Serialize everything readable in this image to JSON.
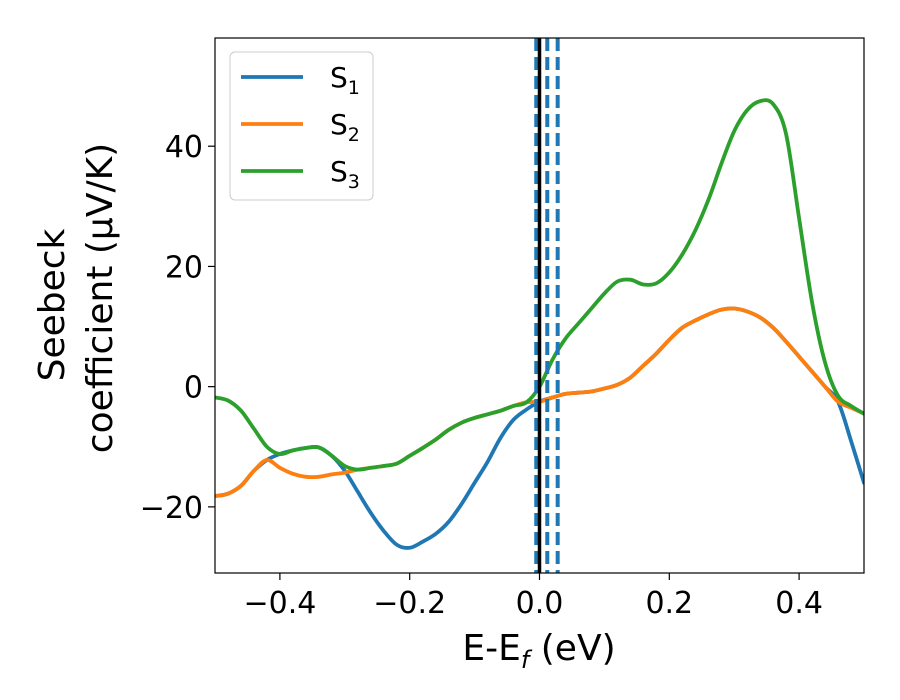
{
  "chart_data": {
    "type": "line",
    "xlabel": {
      "main": "E-E",
      "sub": "f",
      "unit": " (eV)"
    },
    "ylabel": {
      "line1": "Seebeck",
      "line2": "coefficient  (μV/K)"
    },
    "xlim": [
      -0.5,
      0.5
    ],
    "ylim": [
      -31,
      58
    ],
    "x_ticks": [
      -0.4,
      -0.2,
      0.0,
      0.2,
      0.4
    ],
    "x_tick_labels": [
      "−0.4",
      "−0.2",
      "0.0",
      "0.2",
      "0.4"
    ],
    "y_ticks": [
      -20,
      0,
      20,
      40
    ],
    "y_tick_labels": [
      "−20",
      "0",
      "20",
      "40"
    ],
    "legend_position": "top-left",
    "grid": false,
    "vertical_lines": [
      {
        "x": 0.0,
        "style": "solid",
        "color": "#000000"
      },
      {
        "x": -0.005,
        "style": "dashed",
        "color": "#1f77b4"
      },
      {
        "x": 0.012,
        "style": "dashed",
        "color": "#1f77b4"
      },
      {
        "x": 0.028,
        "style": "dashed",
        "color": "#1f77b4"
      }
    ],
    "series": [
      {
        "name": "S",
        "sub": "1",
        "color": "#1f77b4",
        "points": [
          [
            -0.5,
            -18.2
          ],
          [
            -0.48,
            -17.8
          ],
          [
            -0.46,
            -16.5
          ],
          [
            -0.44,
            -14.0
          ],
          [
            -0.42,
            -12.2
          ],
          [
            -0.4,
            -11.2
          ],
          [
            -0.38,
            -10.6
          ],
          [
            -0.36,
            -10.2
          ],
          [
            -0.34,
            -10.1
          ],
          [
            -0.32,
            -11.5
          ],
          [
            -0.3,
            -14.0
          ],
          [
            -0.28,
            -17.5
          ],
          [
            -0.26,
            -21.0
          ],
          [
            -0.24,
            -24.0
          ],
          [
            -0.22,
            -26.3
          ],
          [
            -0.2,
            -26.8
          ],
          [
            -0.18,
            -25.8
          ],
          [
            -0.16,
            -24.5
          ],
          [
            -0.14,
            -22.5
          ],
          [
            -0.12,
            -19.5
          ],
          [
            -0.1,
            -16.0
          ],
          [
            -0.08,
            -12.5
          ],
          [
            -0.06,
            -8.5
          ],
          [
            -0.04,
            -5.5
          ],
          [
            -0.02,
            -3.8
          ],
          [
            0.0,
            -2.5
          ],
          [
            0.02,
            -1.8
          ],
          [
            0.04,
            -1.2
          ],
          [
            0.06,
            -1.0
          ],
          [
            0.08,
            -0.8
          ],
          [
            0.1,
            -0.3
          ],
          [
            0.12,
            0.3
          ],
          [
            0.14,
            1.5
          ],
          [
            0.16,
            3.5
          ],
          [
            0.18,
            5.5
          ],
          [
            0.2,
            7.8
          ],
          [
            0.22,
            9.8
          ],
          [
            0.24,
            11.0
          ],
          [
            0.26,
            12.0
          ],
          [
            0.28,
            12.8
          ],
          [
            0.3,
            13.0
          ],
          [
            0.32,
            12.5
          ],
          [
            0.34,
            11.5
          ],
          [
            0.36,
            9.8
          ],
          [
            0.38,
            7.5
          ],
          [
            0.4,
            5.0
          ],
          [
            0.42,
            2.5
          ],
          [
            0.44,
            0.0
          ],
          [
            0.46,
            -2.5
          ],
          [
            0.48,
            -9.0
          ],
          [
            0.5,
            -16.0
          ]
        ]
      },
      {
        "name": "S",
        "sub": "2",
        "color": "#ff7f0e",
        "points": [
          [
            -0.5,
            -18.2
          ],
          [
            -0.48,
            -17.8
          ],
          [
            -0.46,
            -16.5
          ],
          [
            -0.44,
            -14.0
          ],
          [
            -0.42,
            -12.2
          ],
          [
            -0.4,
            -13.5
          ],
          [
            -0.38,
            -14.5
          ],
          [
            -0.36,
            -15.0
          ],
          [
            -0.34,
            -15.0
          ],
          [
            -0.32,
            -14.6
          ],
          [
            -0.3,
            -14.3
          ],
          [
            -0.28,
            -13.8
          ],
          [
            -0.26,
            -13.5
          ],
          [
            -0.24,
            -13.2
          ],
          [
            -0.22,
            -12.8
          ],
          [
            -0.2,
            -11.5
          ],
          [
            -0.18,
            -10.2
          ],
          [
            -0.16,
            -8.8
          ],
          [
            -0.14,
            -7.2
          ],
          [
            -0.12,
            -6.0
          ],
          [
            -0.1,
            -5.2
          ],
          [
            -0.08,
            -4.6
          ],
          [
            -0.06,
            -4.0
          ],
          [
            -0.04,
            -3.2
          ],
          [
            -0.02,
            -2.6
          ],
          [
            0.0,
            -2.5
          ],
          [
            0.02,
            -1.8
          ],
          [
            0.04,
            -1.2
          ],
          [
            0.06,
            -1.0
          ],
          [
            0.08,
            -0.8
          ],
          [
            0.1,
            -0.3
          ],
          [
            0.12,
            0.3
          ],
          [
            0.14,
            1.5
          ],
          [
            0.16,
            3.5
          ],
          [
            0.18,
            5.5
          ],
          [
            0.2,
            7.8
          ],
          [
            0.22,
            9.8
          ],
          [
            0.24,
            11.0
          ],
          [
            0.26,
            12.0
          ],
          [
            0.28,
            12.8
          ],
          [
            0.3,
            13.0
          ],
          [
            0.32,
            12.5
          ],
          [
            0.34,
            11.5
          ],
          [
            0.36,
            9.8
          ],
          [
            0.38,
            7.5
          ],
          [
            0.4,
            5.0
          ],
          [
            0.42,
            2.5
          ],
          [
            0.44,
            0.0
          ],
          [
            0.46,
            -2.5
          ],
          [
            0.48,
            -3.5
          ],
          [
            0.5,
            -4.5
          ]
        ]
      },
      {
        "name": "S",
        "sub": "3",
        "color": "#2ca02c",
        "points": [
          [
            -0.5,
            -1.8
          ],
          [
            -0.48,
            -2.3
          ],
          [
            -0.46,
            -4.0
          ],
          [
            -0.44,
            -7.0
          ],
          [
            -0.42,
            -10.0
          ],
          [
            -0.4,
            -11.2
          ],
          [
            -0.38,
            -10.6
          ],
          [
            -0.36,
            -10.2
          ],
          [
            -0.34,
            -10.1
          ],
          [
            -0.32,
            -11.5
          ],
          [
            -0.3,
            -13.2
          ],
          [
            -0.28,
            -13.8
          ],
          [
            -0.26,
            -13.5
          ],
          [
            -0.24,
            -13.2
          ],
          [
            -0.22,
            -12.8
          ],
          [
            -0.2,
            -11.5
          ],
          [
            -0.18,
            -10.2
          ],
          [
            -0.16,
            -8.8
          ],
          [
            -0.14,
            -7.2
          ],
          [
            -0.12,
            -6.0
          ],
          [
            -0.1,
            -5.2
          ],
          [
            -0.08,
            -4.6
          ],
          [
            -0.06,
            -4.0
          ],
          [
            -0.04,
            -3.2
          ],
          [
            -0.02,
            -2.6
          ],
          [
            0.0,
            0.0
          ],
          [
            0.02,
            4.5
          ],
          [
            0.04,
            8.0
          ],
          [
            0.06,
            10.5
          ],
          [
            0.08,
            13.0
          ],
          [
            0.1,
            15.5
          ],
          [
            0.12,
            17.5
          ],
          [
            0.14,
            17.8
          ],
          [
            0.16,
            17.0
          ],
          [
            0.18,
            17.2
          ],
          [
            0.2,
            19.0
          ],
          [
            0.22,
            22.0
          ],
          [
            0.24,
            26.0
          ],
          [
            0.26,
            31.0
          ],
          [
            0.28,
            37.0
          ],
          [
            0.3,
            42.5
          ],
          [
            0.32,
            46.0
          ],
          [
            0.34,
            47.5
          ],
          [
            0.36,
            47.0
          ],
          [
            0.38,
            42.0
          ],
          [
            0.4,
            28.0
          ],
          [
            0.42,
            14.0
          ],
          [
            0.44,
            4.0
          ],
          [
            0.46,
            -1.5
          ],
          [
            0.48,
            -3.2
          ],
          [
            0.5,
            -4.5
          ]
        ]
      }
    ]
  }
}
